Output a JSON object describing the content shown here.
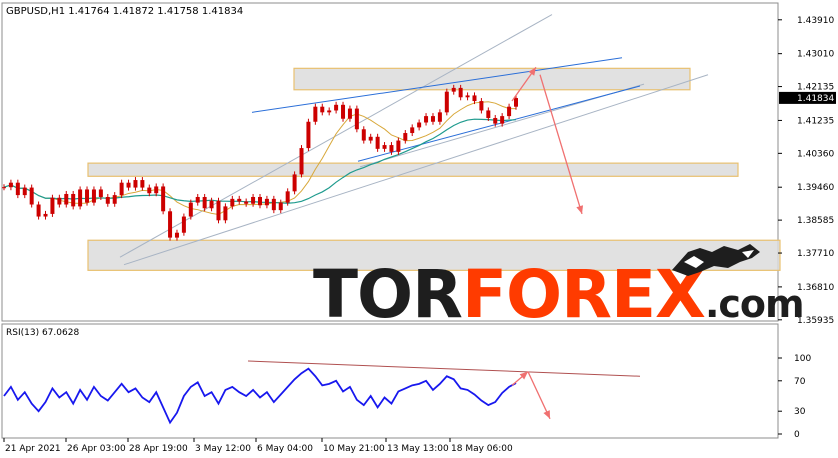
{
  "chart_data": [
    {
      "type": "candlestick",
      "header": "GBPUSD,H1  1.41764 1.41872 1.41758 1.41834",
      "current_price": 1.41834,
      "current_price_label": "1.41834",
      "y_ticks": [
        "1.43910",
        "1.43010",
        "1.42135",
        "1.41235",
        "1.40360",
        "1.39460",
        "1.38585",
        "1.37710",
        "1.36810",
        "1.35935"
      ],
      "ylim": [
        1.3593,
        1.4433
      ],
      "x_ticks": [
        "21 Apr 2021",
        "26 Apr 03:00",
        "28 Apr 19:00",
        "3 May 12:00",
        "6 May 04:00",
        "10 May 21:00",
        "13 May 13:00",
        "18 May 06:00"
      ],
      "close": [
        1.3946,
        1.3958,
        1.3925,
        1.3945,
        1.39,
        1.3868,
        1.3875,
        1.3918,
        1.39,
        1.3928,
        1.3895,
        1.394,
        1.3905,
        1.394,
        1.392,
        1.3902,
        1.3925,
        1.3958,
        1.3945,
        1.3965,
        1.3945,
        1.393,
        1.3948,
        1.3882,
        1.3812,
        1.3825,
        1.3868,
        1.3905,
        1.392,
        1.389,
        1.391,
        1.3858,
        1.3895,
        1.3915,
        1.3908,
        1.3902,
        1.392,
        1.3898,
        1.3915,
        1.3885,
        1.3905,
        1.3935,
        1.398,
        1.405,
        1.412,
        1.416,
        1.4145,
        1.415,
        1.4165,
        1.4128,
        1.4155,
        1.41,
        1.407,
        1.408,
        1.4048,
        1.4058,
        1.404,
        1.407,
        1.409,
        1.4105,
        1.4118,
        1.4135,
        1.412,
        1.4145,
        1.42,
        1.421,
        1.4185,
        1.419,
        1.4175,
        1.415,
        1.413,
        1.4115,
        1.4135,
        1.416,
        1.4183
      ]
    },
    {
      "type": "line",
      "title": "RSI(13) 67.0628",
      "ylim": [
        0,
        100
      ],
      "y_ticks": [
        "100",
        "70",
        "30",
        "0"
      ],
      "values": [
        50,
        62,
        45,
        55,
        40,
        30,
        42,
        60,
        48,
        55,
        40,
        58,
        45,
        62,
        50,
        44,
        55,
        66,
        55,
        60,
        48,
        42,
        55,
        35,
        15,
        28,
        50,
        62,
        68,
        50,
        55,
        40,
        58,
        62,
        55,
        50,
        58,
        48,
        55,
        42,
        52,
        62,
        72,
        80,
        86,
        76,
        64,
        66,
        70,
        56,
        62,
        45,
        38,
        50,
        35,
        48,
        40,
        56,
        60,
        64,
        66,
        70,
        58,
        66,
        76,
        72,
        60,
        58,
        52,
        44,
        38,
        42,
        54,
        62,
        67
      ]
    }
  ],
  "watermark": {
    "part1": "TOR",
    "part2": "FOREX",
    "part3": ".com",
    "colors": {
      "part1": "#1e1e1e",
      "part2": "#ff3b00",
      "part3": "#1e1e1e"
    }
  },
  "colors": {
    "candle": "#cc0000",
    "ma_fast": "#d8a83a",
    "ma_slow": "#1f9b8e",
    "rsi": "#1818ee",
    "trendline": "#2a6ed8",
    "channel": "#a8b4c4",
    "arrow": "#f07070",
    "zone_fill": "#dcdcdc",
    "zone_border": "#e8c070",
    "rsi_trendline": "#b05050",
    "price_badge": "#000000"
  }
}
